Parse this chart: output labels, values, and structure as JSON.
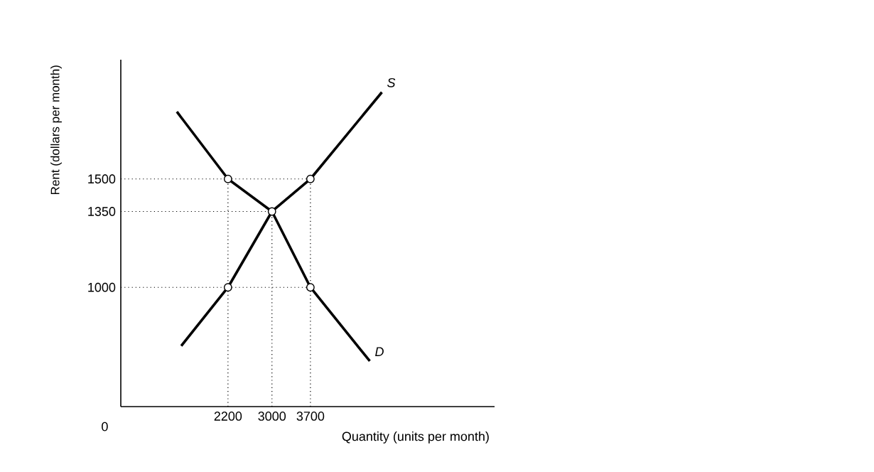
{
  "chart_data": {
    "type": "line",
    "xlabel": "Quantity (units per month)",
    "ylabel": "Rent (dollars per month)",
    "xlim": [
      250,
      7050
    ],
    "ylim": [
      450,
      2050
    ],
    "xticks": [
      2200,
      3000,
      3700
    ],
    "yticks": [
      1000,
      1350,
      1500
    ],
    "series": [
      {
        "name": "S",
        "color": "#000000",
        "x": [
          1350,
          2200,
          3000,
          3700,
          5000
        ],
        "values": [
          730,
          1000,
          1350,
          1500,
          1900
        ]
      },
      {
        "name": "D",
        "color": "#000000",
        "x": [
          1270,
          2200,
          3000,
          3700,
          4780
        ],
        "values": [
          1810,
          1500,
          1350,
          1000,
          660
        ]
      },
      {
        "type": "scatter",
        "marker": "circle",
        "color": "#000000",
        "x": [
          2200,
          3700,
          3000,
          2200,
          3700
        ],
        "values": [
          1500,
          1500,
          1350,
          1000,
          1000
        ]
      }
    ],
    "ref_lines": [
      {
        "axis": "y",
        "value": 1500,
        "line_style": "dotted"
      },
      {
        "axis": "y",
        "value": 1350,
        "line_style": "dotted"
      },
      {
        "axis": "y",
        "value": 1000,
        "line_style": "dotted"
      },
      {
        "axis": "x",
        "value": 2200,
        "line_style": "dotted"
      },
      {
        "axis": "x",
        "value": 3000,
        "line_style": "dotted"
      },
      {
        "axis": "x",
        "value": 3700,
        "line_style": "dotted"
      }
    ],
    "annotations": [
      "0"
    ]
  }
}
